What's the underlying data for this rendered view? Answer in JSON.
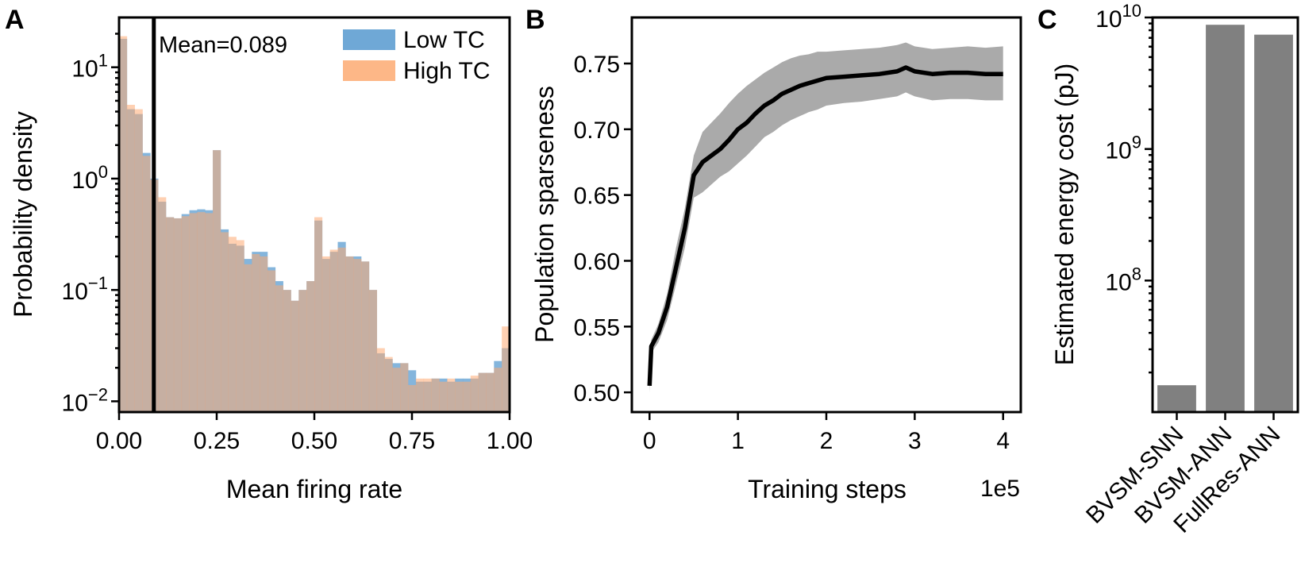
{
  "panels": {
    "a": {
      "label": "A"
    },
    "b": {
      "label": "B"
    },
    "c": {
      "label": "C"
    }
  },
  "chart_data": [
    {
      "type": "bar",
      "subtype": "histogram",
      "panel": "A",
      "xlabel": "Mean firing rate",
      "ylabel": "Probability density",
      "yscale": "log",
      "xlim": [
        0,
        1
      ],
      "ylim": [
        0.008,
        28
      ],
      "xticks": [
        "0.00",
        "0.25",
        "0.50",
        "0.75",
        "1.00"
      ],
      "yticks": [
        {
          "base": "10",
          "exp": "1",
          "value": 10
        },
        {
          "base": "10",
          "exp": "0",
          "value": 1
        },
        {
          "base": "10",
          "exp": "−1",
          "value": 0.1
        },
        {
          "base": "10",
          "exp": "−2",
          "value": 0.01
        }
      ],
      "bin_width": 0.02,
      "annotation": "Mean=0.089",
      "mean_line": 0.089,
      "series": [
        {
          "name": "Low TC",
          "color": "#6fa8d6",
          "values": [
            18,
            4.2,
            3.8,
            1.7,
            1.0,
            0.62,
            0.45,
            0.44,
            0.48,
            0.52,
            0.53,
            0.52,
            1.8,
            0.35,
            0.26,
            0.25,
            0.19,
            0.22,
            0.22,
            0.16,
            0.12,
            0.1,
            0.08,
            0.1,
            0.12,
            0.42,
            0.19,
            0.22,
            0.27,
            0.2,
            0.2,
            0.18,
            0.1,
            0.027,
            0.024,
            0.022,
            0.022,
            0.019,
            0.015,
            0.015,
            0.016,
            0.016,
            0.015,
            0.016,
            0.016,
            0.016,
            0.018,
            0.018,
            0.023,
            0.03
          ]
        },
        {
          "name": "High TC",
          "color": "#fdaa72",
          "values": [
            19,
            4.6,
            4.2,
            1.6,
            0.98,
            0.68,
            0.45,
            0.44,
            0.46,
            0.49,
            0.5,
            0.49,
            1.8,
            0.33,
            0.3,
            0.28,
            0.17,
            0.21,
            0.2,
            0.15,
            0.11,
            0.1,
            0.08,
            0.1,
            0.12,
            0.45,
            0.2,
            0.23,
            0.24,
            0.2,
            0.19,
            0.18,
            0.1,
            0.03,
            0.025,
            0.02,
            0.022,
            0.014,
            0.016,
            0.016,
            0.016,
            0.015,
            0.016,
            0.015,
            0.015,
            0.017,
            0.018,
            0.018,
            0.02,
            0.047
          ]
        }
      ],
      "legend": [
        "Low TC",
        "High TC"
      ],
      "legend_position": "top-right"
    },
    {
      "type": "line",
      "panel": "B",
      "xlabel": "Training steps",
      "ylabel": "Population sparseness",
      "x_multiplier": "1e5",
      "xlim": [
        -0.2,
        4.2
      ],
      "ylim": [
        0.485,
        0.785
      ],
      "xticks": [
        "0",
        "1",
        "2",
        "3",
        "4"
      ],
      "yticks": [
        "0.50",
        "0.55",
        "0.60",
        "0.65",
        "0.70",
        "0.75"
      ],
      "x": [
        0,
        0.02,
        0.1,
        0.2,
        0.3,
        0.4,
        0.5,
        0.6,
        0.7,
        0.8,
        0.9,
        1.0,
        1.1,
        1.2,
        1.3,
        1.4,
        1.5,
        1.6,
        1.7,
        1.8,
        1.9,
        2.0,
        2.2,
        2.4,
        2.6,
        2.8,
        2.9,
        3.0,
        3.2,
        3.4,
        3.6,
        3.8,
        4.0
      ],
      "series": [
        {
          "name": "mean",
          "color": "#000000",
          "values": [
            0.505,
            0.535,
            0.545,
            0.565,
            0.595,
            0.625,
            0.665,
            0.675,
            0.68,
            0.685,
            0.692,
            0.7,
            0.705,
            0.712,
            0.718,
            0.722,
            0.727,
            0.73,
            0.733,
            0.735,
            0.737,
            0.739,
            0.74,
            0.741,
            0.742,
            0.744,
            0.747,
            0.744,
            0.742,
            0.743,
            0.743,
            0.742,
            0.742
          ]
        },
        {
          "name": "upper",
          "color": "#aaaaaa",
          "values": [
            0.51,
            0.54,
            0.552,
            0.575,
            0.61,
            0.64,
            0.68,
            0.698,
            0.705,
            0.712,
            0.72,
            0.727,
            0.733,
            0.738,
            0.743,
            0.747,
            0.751,
            0.754,
            0.756,
            0.757,
            0.759,
            0.759,
            0.76,
            0.761,
            0.762,
            0.764,
            0.766,
            0.763,
            0.761,
            0.762,
            0.763,
            0.762,
            0.763
          ]
        },
        {
          "name": "lower",
          "color": "#aaaaaa",
          "values": [
            0.5,
            0.53,
            0.538,
            0.555,
            0.582,
            0.61,
            0.648,
            0.652,
            0.658,
            0.664,
            0.668,
            0.674,
            0.68,
            0.687,
            0.694,
            0.698,
            0.703,
            0.707,
            0.71,
            0.713,
            0.715,
            0.718,
            0.72,
            0.721,
            0.723,
            0.725,
            0.728,
            0.725,
            0.722,
            0.723,
            0.723,
            0.722,
            0.722
          ]
        }
      ]
    },
    {
      "type": "bar",
      "panel": "C",
      "ylabel": "Estimated energy cost (pJ)",
      "yscale": "log",
      "ylim": [
        10000000,
        10000000000
      ],
      "yticks": [
        {
          "base": "10",
          "exp": "10",
          "value": 10000000000
        },
        {
          "base": "10",
          "exp": "9",
          "value": 1000000000
        },
        {
          "base": "10",
          "exp": "8",
          "value": 100000000
        }
      ],
      "categories": [
        "BVSM-SNN",
        "BVSM-ANN",
        "FullRes-ANN"
      ],
      "values": [
        16000000,
        8800000000,
        7400000000
      ],
      "color": "#808080"
    }
  ]
}
